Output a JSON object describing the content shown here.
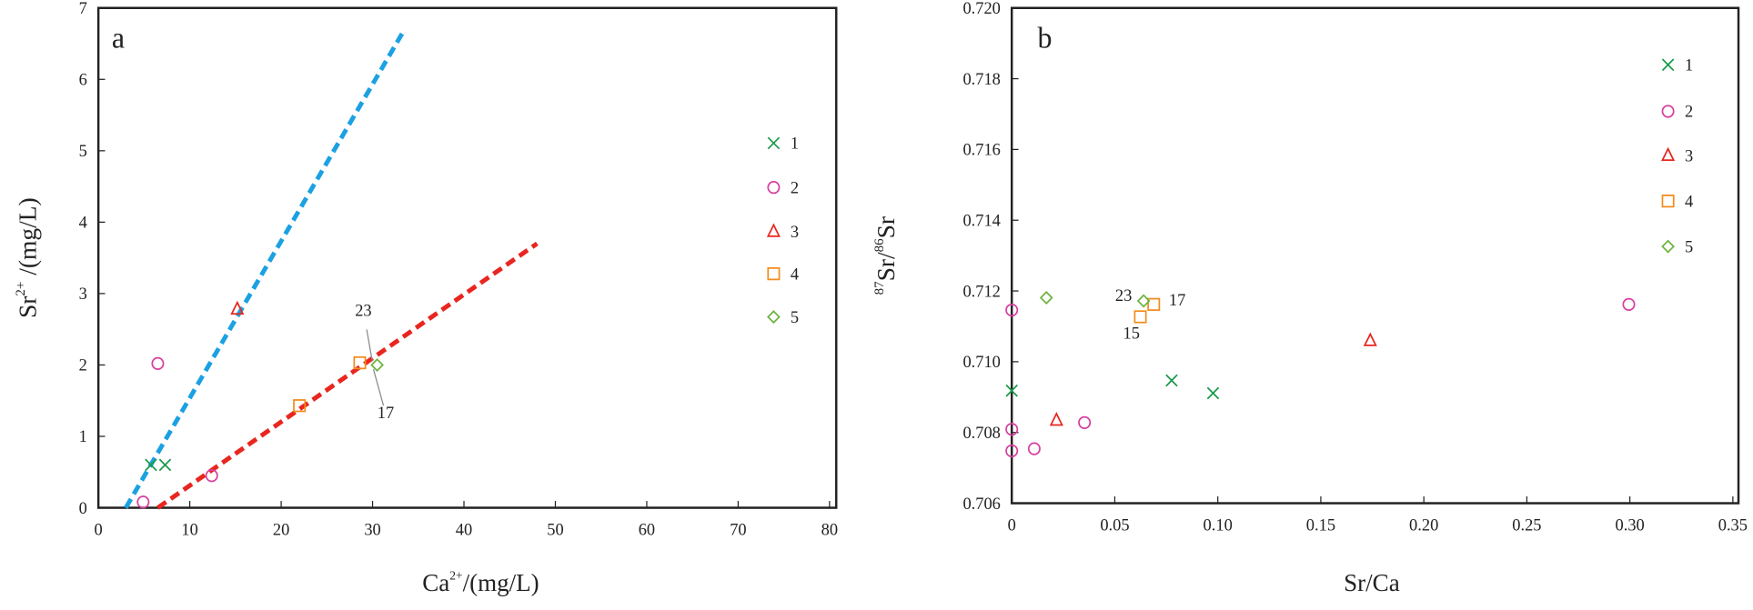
{
  "chart_data": [
    {
      "type": "scatter",
      "panel": "a",
      "x_label": [
        "Ca",
        "2+",
        "/(mg/L)"
      ],
      "y_label": [
        "Sr",
        "2+",
        " /(mg/L)"
      ],
      "xlim": [
        0,
        80
      ],
      "ylim": [
        0,
        7
      ],
      "xticks": [
        0,
        10,
        20,
        30,
        40,
        50,
        60,
        70,
        80
      ],
      "yticks": [
        0,
        1,
        2,
        3,
        4,
        5,
        6,
        7
      ],
      "series": [
        {
          "name": "1",
          "color": "#1a9a4a",
          "marker": "x",
          "x": [
            5.75,
            7.3
          ],
          "y": [
            0.6,
            0.6
          ]
        },
        {
          "name": "2",
          "color": "#d6409f",
          "marker": "circle",
          "x": [
            4.9,
            6.5,
            12.4
          ],
          "y": [
            0.08,
            2.02,
            0.45
          ]
        },
        {
          "name": "3",
          "color": "#e8261f",
          "marker": "triangle",
          "x": [
            15.2
          ],
          "y": [
            2.78
          ]
        },
        {
          "name": "4",
          "color": "#f28c1e",
          "marker": "square",
          "x": [
            22,
            28.6
          ],
          "y": [
            1.43,
            2.03
          ]
        },
        {
          "name": "5",
          "color": "#6cb33f",
          "marker": "diamond",
          "x": [
            30.5
          ],
          "y": [
            2.0
          ]
        }
      ],
      "lines": [
        {
          "color": "#1ba1e2",
          "x": [
            3,
            33.5
          ],
          "y": [
            0,
            6.7
          ]
        },
        {
          "color": "#e8261f",
          "x": [
            6.5,
            48
          ],
          "y": [
            0,
            3.7
          ]
        }
      ],
      "annotations": [
        "23",
        "17"
      ]
    },
    {
      "type": "scatter",
      "panel": "b",
      "x_label": [
        "",
        "",
        "Sr/Ca"
      ],
      "y_label": [
        "87",
        "Sr/",
        "86",
        "Sr"
      ],
      "xlim": [
        0,
        0.35
      ],
      "ylim": [
        0.706,
        0.72
      ],
      "xticks": [
        0,
        0.05,
        {
          "value": 0.1,
          "label": "0.10"
        },
        0.15,
        {
          "value": 0.2,
          "label": "0.20"
        },
        0.25,
        {
          "value": 0.3,
          "label": "0.30"
        },
        0.35
      ],
      "yticks": [
        0.706,
        0.708,
        {
          "value": 0.71,
          "label": "0.710"
        },
        0.712,
        0.714,
        0.716,
        0.718,
        {
          "value": 0.72,
          "label": "0.720"
        }
      ],
      "series": [
        {
          "name": "1",
          "color": "#1a9a4a",
          "marker": "x",
          "x": [
            0,
            0.0776,
            0.0977
          ],
          "y": [
            0.70918,
            0.70947,
            0.70911
          ]
        },
        {
          "name": "2",
          "color": "#d6409f",
          "marker": "circle",
          "x": [
            0,
            0,
            0,
            0.0109,
            0.0353,
            0.2995
          ],
          "y": [
            0.71146,
            0.70809,
            0.70748,
            0.70754,
            0.70828,
            0.71162
          ]
        },
        {
          "name": "3",
          "color": "#e8261f",
          "marker": "triangle",
          "x": [
            0.0217,
            0.174
          ],
          "y": [
            0.70834,
            0.71059
          ]
        },
        {
          "name": "4",
          "color": "#f28c1e",
          "marker": "square",
          "x": [
            0.0624,
            0.0689
          ],
          "y": [
            0.71127,
            0.71162
          ]
        },
        {
          "name": "5",
          "color": "#6cb33f",
          "marker": "diamond",
          "x": [
            0.0168,
            0.064
          ],
          "y": [
            0.71181,
            0.71172
          ]
        }
      ],
      "annotations": [
        "23",
        "17",
        "15"
      ]
    }
  ]
}
